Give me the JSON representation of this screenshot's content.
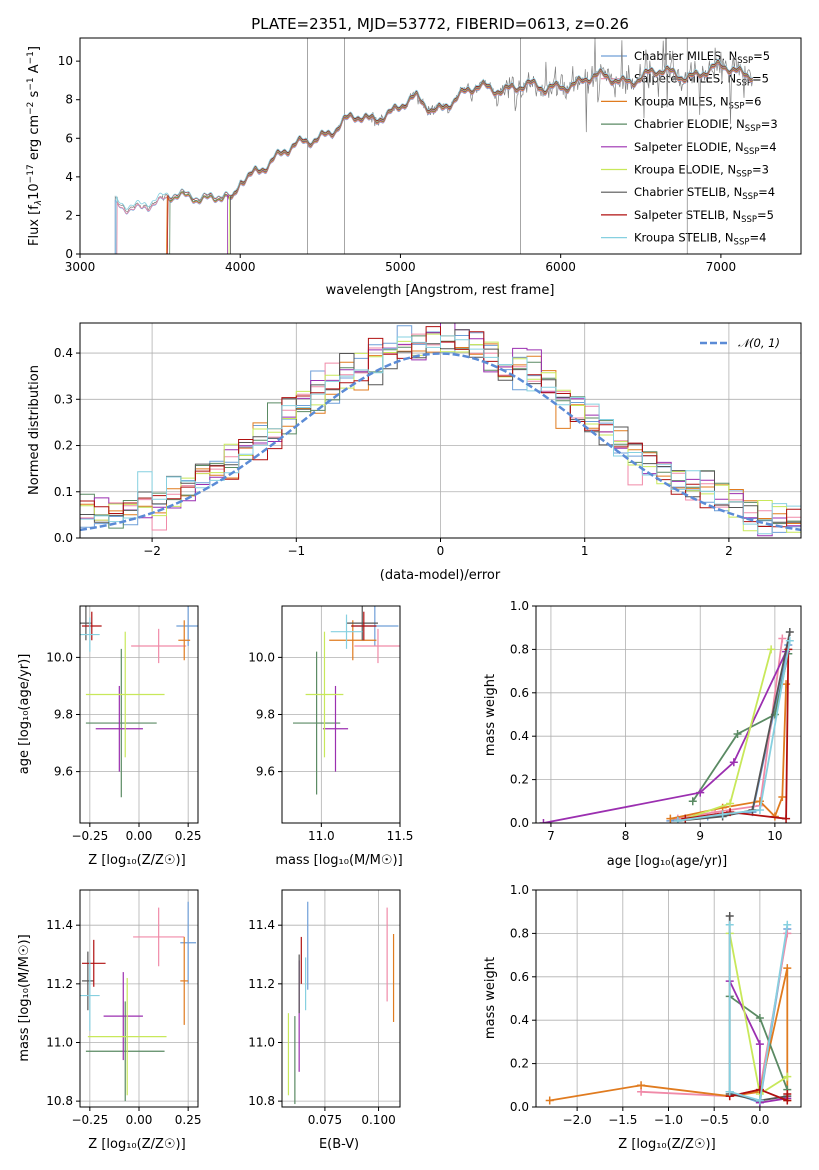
{
  "figure": {
    "title": "PLATE=2351, MJD=53772, FIBERID=0613, z=0.26"
  },
  "legend_series": [
    {
      "name": "Chabrier MILES, N$_{SSP}$=5",
      "label": "Chabrier MILES, N",
      "sub": "SSP",
      "tail": "=5",
      "color": "#6f9fd8"
    },
    {
      "name": "Salpeter MILES, N$_{SSP}$=5",
      "label": "Salpeter MILES, N",
      "sub": "SSP",
      "tail": "=5",
      "color": "#f08aa8"
    },
    {
      "name": "Kroupa MILES, N$_{SSP}$=6",
      "label": "Kroupa MILES, N",
      "sub": "SSP",
      "tail": "=6",
      "color": "#e07b1f"
    },
    {
      "name": "Chabrier ELODIE, N$_{SSP}$=3",
      "label": "Chabrier ELODIE, N",
      "sub": "SSP",
      "tail": "=3",
      "color": "#5a8a63"
    },
    {
      "name": "Salpeter ELODIE, N$_{SSP}$=4",
      "label": "Salpeter ELODIE, N",
      "sub": "SSP",
      "tail": "=4",
      "color": "#9b2fb0"
    },
    {
      "name": "Kroupa ELODIE, N$_{SSP}$=3",
      "label": "Kroupa ELODIE, N",
      "sub": "SSP",
      "tail": "=3",
      "color": "#c8e85a"
    },
    {
      "name": "Chabrier STELIB, N$_{SSP}$=4",
      "label": "Chabrier STELIB, N",
      "sub": "SSP",
      "tail": "=4",
      "color": "#555555"
    },
    {
      "name": "Salpeter STELIB, N$_{SSP}$=5",
      "label": "Salpeter STELIB, N",
      "sub": "SSP",
      "tail": "=5",
      "color": "#b01010"
    },
    {
      "name": "Kroupa STELIB, N$_{SSP}$=4",
      "label": "Kroupa STELIB, N",
      "sub": "SSP",
      "tail": "=4",
      "color": "#86d0e0"
    }
  ],
  "spectrum_color": "#808080",
  "normal_color": "#5b8bd6",
  "chart_data": [
    {
      "id": "spectrum",
      "type": "line",
      "title": "PLATE=2351, MJD=53772, FIBERID=0613, z=0.26",
      "xlabel": "wavelength [Angstrom, rest frame]",
      "ylabel_parts": {
        "a": "Flux [f",
        "b": "λ",
        "c": "10",
        "d": "−17",
        "e": " erg cm",
        "f": "−2",
        "g": " s",
        "h": "−1",
        "i": " A",
        "j": "−1",
        "k": "]"
      },
      "xlim": [
        3000,
        7500
      ],
      "ylim": [
        0,
        11.2
      ],
      "xticks": [
        3000,
        4000,
        5000,
        6000,
        7000
      ],
      "yticks": [
        0,
        2,
        4,
        6,
        8,
        10
      ],
      "grid": false,
      "legend": "top-right",
      "continuum": [
        [
          3220,
          2.5
        ],
        [
          3400,
          2.7
        ],
        [
          3500,
          2.6
        ],
        [
          3600,
          2.9
        ],
        [
          3700,
          3.2
        ],
        [
          3800,
          3.0
        ],
        [
          3900,
          2.8
        ],
        [
          3950,
          2.5
        ],
        [
          4000,
          3.7
        ],
        [
          4100,
          4.5
        ],
        [
          4200,
          4.9
        ],
        [
          4300,
          5.2
        ],
        [
          4400,
          5.8
        ],
        [
          4500,
          6.3
        ],
        [
          4600,
          6.5
        ],
        [
          4700,
          6.9
        ],
        [
          4800,
          7.0
        ],
        [
          4900,
          7.4
        ],
        [
          5000,
          7.6
        ],
        [
          5100,
          7.9
        ],
        [
          5200,
          7.5
        ],
        [
          5300,
          8.0
        ],
        [
          5500,
          8.5
        ],
        [
          5700,
          8.8
        ],
        [
          5900,
          8.4
        ],
        [
          6000,
          8.9
        ],
        [
          6200,
          9.0
        ],
        [
          6500,
          9.2
        ],
        [
          6800,
          9.4
        ],
        [
          7000,
          9.5
        ],
        [
          7200,
          9.5
        ]
      ],
      "model_starts": [
        3220,
        3230,
        3540,
        3560,
        3920,
        3930,
        3940,
        3545,
        3225
      ]
    },
    {
      "id": "residuals",
      "type": "step",
      "xlabel": "(data-model)/error",
      "ylabel": "Normed distribution",
      "legend_label": "𝒩(0, 1)",
      "xlim": [
        -2.5,
        2.5
      ],
      "ylim": [
        0,
        0.465
      ],
      "xticks": [
        -2,
        -1,
        0,
        1,
        2
      ],
      "yticks": [
        0.0,
        0.1,
        0.2,
        0.3,
        0.4
      ],
      "grid": true,
      "legend": "top-right",
      "bin_width": 0.1,
      "bin_start": -2.5
    },
    {
      "id": "z-age",
      "type": "errorbar",
      "xlabel": "Z [log₁₀(Z/Z☉)]",
      "ylabel": "age  [log₁₀(age/yr)]",
      "xlim": [
        -0.3,
        0.3
      ],
      "ylim": [
        9.42,
        10.18
      ],
      "xticks": [
        -0.25,
        0.0,
        0.25
      ],
      "yticks": [
        9.6,
        9.8,
        10.0
      ],
      "grid": true,
      "points": [
        {
          "x": 0.25,
          "y": 10.11,
          "xerr": 0.06,
          "yerr": 0.07,
          "c": 0
        },
        {
          "x": 0.1,
          "y": 10.04,
          "xerr": 0.14,
          "yerr": 0.06,
          "c": 1
        },
        {
          "x": 0.23,
          "y": 10.06,
          "xerr": 0.03,
          "yerr": 0.07,
          "c": 2
        },
        {
          "x": -0.09,
          "y": 9.77,
          "xerr": 0.18,
          "yerr": 0.26,
          "c": 3
        },
        {
          "x": -0.1,
          "y": 9.75,
          "xerr": 0.12,
          "yerr": 0.15,
          "c": 4
        },
        {
          "x": -0.07,
          "y": 9.87,
          "xerr": 0.2,
          "yerr": 0.22,
          "c": 5
        },
        {
          "x": -0.27,
          "y": 10.12,
          "xerr": 0.03,
          "yerr": 0.06,
          "c": 6
        },
        {
          "x": -0.24,
          "y": 10.11,
          "xerr": 0.05,
          "yerr": 0.05,
          "c": 7
        },
        {
          "x": -0.25,
          "y": 10.08,
          "xerr": 0.05,
          "yerr": 0.06,
          "c": 8
        }
      ]
    },
    {
      "id": "mass-age",
      "type": "errorbar",
      "xlabel": "mass [log₁₀(M/M☉)]",
      "ylabel": "",
      "xlim": [
        10.75,
        11.5
      ],
      "ylim": [
        9.42,
        10.18
      ],
      "xticks": [
        11.0,
        11.5
      ],
      "yticks": [
        9.6,
        9.8,
        10.0
      ],
      "grid": true,
      "points": [
        {
          "x": 11.34,
          "y": 10.11,
          "xerr": 0.15,
          "yerr": 0.07,
          "c": 0
        },
        {
          "x": 11.36,
          "y": 10.04,
          "xerr": 0.15,
          "yerr": 0.06,
          "c": 1
        },
        {
          "x": 11.2,
          "y": 10.06,
          "xerr": 0.15,
          "yerr": 0.07,
          "c": 2
        },
        {
          "x": 10.97,
          "y": 9.77,
          "xerr": 0.15,
          "yerr": 0.25,
          "c": 3
        },
        {
          "x": 11.09,
          "y": 9.75,
          "xerr": 0.08,
          "yerr": 0.15,
          "c": 4
        },
        {
          "x": 11.02,
          "y": 9.87,
          "xerr": 0.12,
          "yerr": 0.22,
          "c": 5
        },
        {
          "x": 11.26,
          "y": 10.12,
          "xerr": 0.1,
          "yerr": 0.06,
          "c": 6
        },
        {
          "x": 11.27,
          "y": 10.11,
          "xerr": 0.08,
          "yerr": 0.05,
          "c": 7
        },
        {
          "x": 11.16,
          "y": 10.09,
          "xerr": 0.1,
          "yerr": 0.06,
          "c": 8
        }
      ]
    },
    {
      "id": "age-weight",
      "type": "line",
      "xlabel": "age  [log₁₀(age/yr)]",
      "ylabel": "mass weight",
      "xlim": [
        6.8,
        10.35
      ],
      "ylim": [
        0.0,
        1.0
      ],
      "xticks": [
        7,
        8,
        9,
        10
      ],
      "yticks": [
        0.0,
        0.2,
        0.4,
        0.6,
        0.8,
        1.0
      ],
      "grid": true,
      "series": [
        {
          "c": 0,
          "points": [
            [
              8.6,
              0.01
            ],
            [
              9.1,
              0.03
            ],
            [
              9.7,
              0.05
            ],
            [
              10.18,
              0.82
            ]
          ]
        },
        {
          "c": 1,
          "points": [
            [
              8.7,
              0.02
            ],
            [
              9.2,
              0.05
            ],
            [
              9.8,
              0.08
            ],
            [
              10.1,
              0.85
            ]
          ]
        },
        {
          "c": 2,
          "points": [
            [
              8.6,
              0.02
            ],
            [
              9.3,
              0.07
            ],
            [
              9.8,
              0.1
            ],
            [
              10.0,
              0.03
            ],
            [
              10.1,
              0.12
            ],
            [
              10.15,
              0.64
            ]
          ]
        },
        {
          "c": 3,
          "points": [
            [
              8.9,
              0.1
            ],
            [
              9.5,
              0.41
            ],
            [
              10.0,
              0.5
            ],
            [
              10.18,
              0.78
            ]
          ]
        },
        {
          "c": 4,
          "points": [
            [
              6.9,
              0.0
            ],
            [
              9.0,
              0.14
            ],
            [
              9.45,
              0.28
            ],
            [
              10.15,
              0.79
            ]
          ]
        },
        {
          "c": 5,
          "points": [
            [
              8.8,
              0.02
            ],
            [
              9.4,
              0.09
            ],
            [
              9.95,
              0.8
            ]
          ]
        },
        {
          "c": 6,
          "points": [
            [
              8.7,
              0.01
            ],
            [
              9.3,
              0.03
            ],
            [
              9.7,
              0.06
            ],
            [
              10.2,
              0.88
            ]
          ]
        },
        {
          "c": 7,
          "points": [
            [
              8.8,
              0.02
            ],
            [
              9.4,
              0.05
            ],
            [
              10.15,
              0.02
            ],
            [
              10.18,
              0.8
            ]
          ]
        },
        {
          "c": 8,
          "points": [
            [
              8.7,
              0.01
            ],
            [
              9.3,
              0.04
            ],
            [
              9.8,
              0.06
            ],
            [
              10.2,
              0.84
            ]
          ]
        }
      ]
    },
    {
      "id": "z-mass",
      "type": "errorbar",
      "xlabel": "Z [log₁₀(Z/Z☉)]",
      "ylabel": "mass [log₁₀(M/M☉)]",
      "xlim": [
        -0.3,
        0.3
      ],
      "ylim": [
        10.78,
        11.52
      ],
      "xticks": [
        -0.25,
        0.0,
        0.25
      ],
      "yticks": [
        10.8,
        11.0,
        11.2,
        11.4
      ],
      "grid": true,
      "points": [
        {
          "x": 0.25,
          "y": 11.34,
          "xerr": 0.04,
          "yerr": 0.14,
          "c": 0
        },
        {
          "x": 0.1,
          "y": 11.36,
          "xerr": 0.13,
          "yerr": 0.1,
          "c": 1
        },
        {
          "x": 0.23,
          "y": 11.21,
          "xerr": 0.02,
          "yerr": 0.15,
          "c": 2
        },
        {
          "x": -0.07,
          "y": 10.97,
          "xerr": 0.2,
          "yerr": 0.17,
          "c": 3
        },
        {
          "x": -0.08,
          "y": 11.09,
          "xerr": 0.1,
          "yerr": 0.15,
          "c": 4
        },
        {
          "x": -0.06,
          "y": 11.02,
          "xerr": 0.2,
          "yerr": 0.2,
          "c": 5
        },
        {
          "x": -0.26,
          "y": 11.21,
          "xerr": 0.03,
          "yerr": 0.1,
          "c": 6
        },
        {
          "x": -0.23,
          "y": 11.27,
          "xerr": 0.06,
          "yerr": 0.08,
          "c": 7
        },
        {
          "x": -0.25,
          "y": 11.16,
          "xerr": 0.05,
          "yerr": 0.12,
          "c": 8
        }
      ]
    },
    {
      "id": "ebv-mass",
      "type": "errorbar",
      "xlabel": "E(B-V)",
      "ylabel": "",
      "xlim": [
        0.055,
        0.11
      ],
      "ylim": [
        10.78,
        11.52
      ],
      "xticks": [
        0.075,
        0.1
      ],
      "yticks": [
        10.8,
        11.0,
        11.2,
        11.4
      ],
      "grid": true,
      "points": [
        {
          "x": 0.067,
          "y": 11.33,
          "xerr": 0.0,
          "yerr": 0.15,
          "c": 0
        },
        {
          "x": 0.104,
          "y": 11.3,
          "xerr": 0.0,
          "yerr": 0.16,
          "c": 1
        },
        {
          "x": 0.107,
          "y": 11.22,
          "xerr": 0.0,
          "yerr": 0.15,
          "c": 2
        },
        {
          "x": 0.061,
          "y": 10.94,
          "xerr": 0.0,
          "yerr": 0.15,
          "c": 3
        },
        {
          "x": 0.063,
          "y": 11.09,
          "xerr": 0.0,
          "yerr": 0.19,
          "c": 4
        },
        {
          "x": 0.058,
          "y": 10.96,
          "xerr": 0.0,
          "yerr": 0.14,
          "c": 5
        },
        {
          "x": 0.063,
          "y": 11.2,
          "xerr": 0.0,
          "yerr": 0.1,
          "c": 6
        },
        {
          "x": 0.064,
          "y": 11.28,
          "xerr": 0.0,
          "yerr": 0.08,
          "c": 7
        },
        {
          "x": 0.066,
          "y": 11.2,
          "xerr": 0.0,
          "yerr": 0.09,
          "c": 8
        }
      ]
    },
    {
      "id": "z-weight",
      "type": "line",
      "xlabel": "Z [log₁₀(Z/Z☉)]",
      "ylabel": "mass weight",
      "xlim": [
        -2.45,
        0.45
      ],
      "ylim": [
        0.0,
        1.0
      ],
      "xticks": [
        -2.0,
        -1.5,
        -1.0,
        -0.5,
        0.0
      ],
      "yticks": [
        0.0,
        0.2,
        0.4,
        0.6,
        0.8,
        1.0
      ],
      "grid": true,
      "series": [
        {
          "c": 0,
          "points": [
            [
              -0.33,
              0.07
            ],
            [
              0.0,
              0.02
            ],
            [
              0.3,
              0.82
            ]
          ]
        },
        {
          "c": 1,
          "points": [
            [
              -1.3,
              0.07
            ],
            [
              -0.33,
              0.05
            ],
            [
              0.0,
              0.08
            ],
            [
              0.3,
              0.8
            ]
          ]
        },
        {
          "c": 2,
          "points": [
            [
              -2.3,
              0.03
            ],
            [
              -1.3,
              0.1
            ],
            [
              -0.33,
              0.05
            ],
            [
              0.0,
              0.07
            ],
            [
              0.3,
              0.64
            ],
            [
              0.3,
              0.03
            ]
          ]
        },
        {
          "c": 3,
          "points": [
            [
              -0.33,
              0.51
            ],
            [
              0.0,
              0.41
            ],
            [
              0.3,
              0.08
            ]
          ]
        },
        {
          "c": 4,
          "points": [
            [
              -0.33,
              0.58
            ],
            [
              0.0,
              0.29
            ],
            [
              0.0,
              0.02
            ],
            [
              0.3,
              0.04
            ]
          ]
        },
        {
          "c": 5,
          "points": [
            [
              -0.33,
              0.8
            ],
            [
              0.0,
              0.06
            ],
            [
              0.3,
              0.14
            ]
          ]
        },
        {
          "c": 6,
          "points": [
            [
              -0.33,
              0.88
            ],
            [
              -0.33,
              0.06
            ],
            [
              0.0,
              0.03
            ],
            [
              0.3,
              0.05
            ]
          ]
        },
        {
          "c": 7,
          "points": [
            [
              -0.33,
              0.05
            ],
            [
              0.0,
              0.08
            ],
            [
              0.3,
              0.03
            ],
            [
              0.3,
              0.06
            ]
          ]
        },
        {
          "c": 8,
          "points": [
            [
              -0.33,
              0.84
            ],
            [
              -0.33,
              0.07
            ],
            [
              0.0,
              0.03
            ],
            [
              0.3,
              0.84
            ]
          ]
        }
      ]
    }
  ]
}
